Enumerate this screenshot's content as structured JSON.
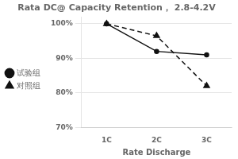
{
  "chart_data": {
    "type": "line",
    "title": "Rata DC@ Capacity Retention， 2.8-4.2V",
    "x_label": "Rate Discharge",
    "categories": [
      "1C",
      "2C",
      "3C"
    ],
    "series": [
      {
        "name": "试验组",
        "color": "#111111",
        "values": [
          100,
          92,
          91
        ],
        "marker": "point",
        "line_style": "solid"
      },
      {
        "name": "对照组",
        "color": "#111111",
        "values": [
          100,
          96.5,
          82
        ],
        "marker": "triangle",
        "line_style": "dashed"
      }
    ],
    "ylim": [
      70,
      102
    ],
    "yticks": [
      {
        "value": 70,
        "label": "70%"
      },
      {
        "value": 80,
        "label": "80%"
      },
      {
        "value": 90,
        "label": "90%"
      },
      {
        "value": 100,
        "label": "100%"
      }
    ],
    "grid": "y",
    "legend": "left"
  }
}
